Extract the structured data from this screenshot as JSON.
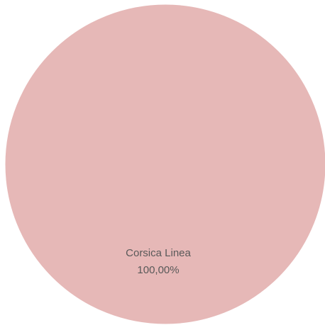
{
  "chart_data": {
    "type": "pie",
    "slices": [
      {
        "label": "Corsica Linea",
        "value": 100,
        "value_label": "100,00%",
        "color": "#e6b8b7"
      }
    ]
  }
}
